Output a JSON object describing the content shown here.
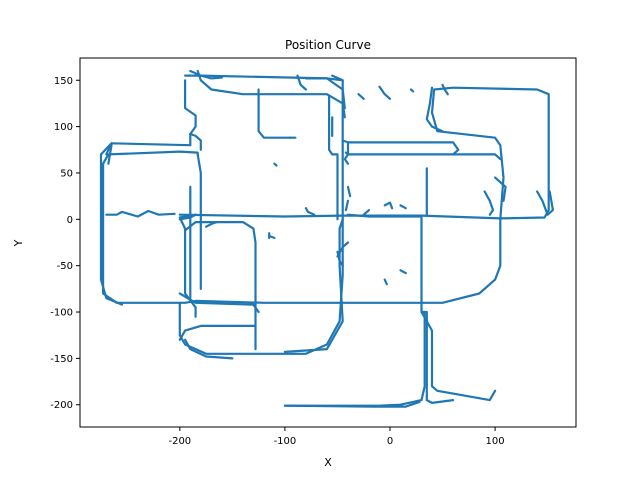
{
  "chart_data": {
    "type": "line",
    "title": "Position Curve",
    "xlabel": "X",
    "ylabel": "Y",
    "xlim": [
      -295,
      177
    ],
    "ylim": [
      -224,
      174
    ],
    "xticks": [
      -200,
      -100,
      0,
      100
    ],
    "yticks": [
      -200,
      -150,
      -100,
      -50,
      0,
      50,
      100,
      150
    ],
    "grid": false,
    "series": [
      {
        "color": "#1f77b4",
        "segments": [
          [
            [
              -200,
              5
            ],
            [
              -100,
              3
            ],
            [
              -45,
              4
            ],
            [
              30,
              4
            ],
            [
              105,
              1
            ],
            [
              147,
              2
            ],
            [
              151,
              10
            ],
            [
              151,
              135
            ],
            [
              140,
              140
            ],
            [
              60,
              142
            ],
            [
              42,
              140
            ],
            [
              40,
              115
            ],
            [
              45,
              95
            ],
            [
              100,
              88
            ],
            [
              105,
              80
            ],
            [
              108,
              45
            ],
            [
              105,
              0
            ],
            [
              105,
              -50
            ],
            [
              100,
              -65
            ],
            [
              85,
              -80
            ],
            [
              50,
              -90
            ],
            [
              -35,
              -90
            ],
            [
              -120,
              -90
            ],
            [
              -185,
              -88
            ],
            [
              -195,
              -90
            ],
            [
              -260,
              -90
            ],
            [
              -273,
              -80
            ],
            [
              -273,
              60
            ],
            [
              -268,
              70
            ],
            [
              -200,
              73
            ],
            [
              -183,
              72
            ],
            [
              -183,
              70
            ]
          ],
          [
            [
              -183,
              70
            ],
            [
              -180,
              50
            ],
            [
              -180,
              -75
            ]
          ],
          [
            [
              -200,
              -90
            ],
            [
              -200,
              -125
            ],
            [
              -195,
              -135
            ],
            [
              -175,
              -145
            ],
            [
              -80,
              -145
            ],
            [
              -60,
              -135
            ],
            [
              -48,
              -110
            ],
            [
              -45,
              -60
            ],
            [
              -45,
              150
            ],
            [
              -55,
              155
            ]
          ],
          [
            [
              -45,
              150
            ],
            [
              -60,
              152
            ],
            [
              -80,
              152
            ]
          ],
          [
            [
              -183,
              160
            ],
            [
              -180,
              150
            ],
            [
              -170,
              140
            ],
            [
              -140,
              135
            ],
            [
              -60,
              135
            ],
            [
              -45,
              125
            ],
            [
              -43,
              110
            ]
          ],
          [
            [
              -195,
              155
            ],
            [
              -180,
              155
            ],
            [
              -60,
              152
            ],
            [
              -45,
              140
            ],
            [
              -43,
              120
            ]
          ],
          [
            [
              -190,
              160
            ],
            [
              -180,
              155
            ],
            [
              -170,
              152
            ],
            [
              -160,
              153
            ]
          ],
          [
            [
              -195,
              150
            ],
            [
              -195,
              120
            ],
            [
              -185,
              112
            ],
            [
              -185,
              100
            ],
            [
              -190,
              92
            ]
          ],
          [
            [
              -190,
              92
            ],
            [
              -190,
              80
            ],
            [
              -265,
              82
            ],
            [
              -270,
              70
            ]
          ],
          [
            [
              -265,
              82
            ],
            [
              -275,
              70
            ],
            [
              -275,
              -65
            ],
            [
              -270,
              -85
            ],
            [
              -255,
              -92
            ]
          ],
          [
            [
              -190,
              92
            ],
            [
              -185,
              90
            ],
            [
              -180,
              85
            ],
            [
              -180,
              75
            ]
          ],
          [
            [
              -265,
              80
            ],
            [
              -268,
              60
            ]
          ],
          [
            [
              -270,
              5
            ],
            [
              -260,
              5
            ],
            [
              -255,
              8
            ],
            [
              -240,
              3
            ],
            [
              -230,
              9
            ],
            [
              -220,
              5
            ],
            [
              -205,
              6
            ]
          ],
          [
            [
              -185,
              5
            ],
            [
              -200,
              2
            ],
            [
              -195,
              -10
            ],
            [
              -195,
              -80
            ],
            [
              -185,
              -95
            ],
            [
              -185,
              -105
            ]
          ],
          [
            [
              -195,
              -12
            ],
            [
              -185,
              -3
            ],
            [
              -140,
              -3
            ],
            [
              -130,
              -10
            ],
            [
              -128,
              -25
            ],
            [
              -128,
              -140
            ]
          ],
          [
            [
              -200,
              -80
            ],
            [
              -185,
              -90
            ],
            [
              -130,
              -92
            ],
            [
              -125,
              -100
            ]
          ],
          [
            [
              -200,
              -130
            ],
            [
              -195,
              -120
            ],
            [
              -180,
              -115
            ],
            [
              -140,
              -115
            ],
            [
              -128,
              -115
            ]
          ],
          [
            [
              -195,
              -130
            ],
            [
              -190,
              -140
            ],
            [
              -175,
              -148
            ],
            [
              -150,
              -150
            ]
          ],
          [
            [
              -125,
              140
            ],
            [
              -125,
              95
            ],
            [
              -120,
              88
            ],
            [
              -95,
              88
            ]
          ],
          [
            [
              -95,
              88
            ],
            [
              -90,
              88
            ]
          ],
          [
            [
              -190,
              35
            ],
            [
              -190,
              -85
            ]
          ],
          [
            [
              -58,
              132
            ],
            [
              -58,
              75
            ],
            [
              -55,
              70
            ],
            [
              -50,
              70
            ],
            [
              -50,
              0
            ]
          ],
          [
            [
              -45,
              85
            ],
            [
              -40,
              83
            ],
            [
              60,
              83
            ],
            [
              65,
              75
            ],
            [
              60,
              70
            ]
          ],
          [
            [
              -40,
              83
            ],
            [
              -40,
              70
            ],
            [
              -43,
              65
            ],
            [
              -40,
              60
            ]
          ],
          [
            [
              -42,
              72
            ],
            [
              -40,
              70
            ],
            [
              60,
              70
            ],
            [
              100,
              70
            ],
            [
              105,
              65
            ]
          ],
          [
            [
              -55,
              110
            ],
            [
              -55,
              90
            ]
          ],
          [
            [
              -45,
              0
            ],
            [
              -48,
              -10
            ],
            [
              -48,
              -50
            ],
            [
              -45,
              -110
            ],
            [
              -60,
              -140
            ],
            [
              -100,
              -143
            ]
          ],
          [
            [
              -40,
              5
            ],
            [
              -20,
              3
            ],
            [
              30,
              3
            ],
            [
              30,
              -100
            ],
            [
              35,
              -100
            ],
            [
              35,
              -195
            ],
            [
              40,
              -198
            ],
            [
              60,
              -195
            ]
          ],
          [
            [
              30,
              -100
            ],
            [
              35,
              -110
            ],
            [
              40,
              -120
            ],
            [
              40,
              -180
            ],
            [
              45,
              -185
            ],
            [
              60,
              -188
            ],
            [
              80,
              -192
            ],
            [
              95,
              -195
            ],
            [
              100,
              -185
            ]
          ],
          [
            [
              -100,
              -201
            ],
            [
              -10,
              -201
            ],
            [
              10,
              -200
            ],
            [
              30,
              -195
            ],
            [
              33,
              -180
            ],
            [
              33,
              -100
            ]
          ],
          [
            [
              -100,
              -201
            ],
            [
              -15,
              -202
            ],
            [
              15,
              -202
            ],
            [
              28,
              -197
            ]
          ],
          [
            [
              -185,
              5
            ],
            [
              -190,
              2
            ],
            [
              -200,
              0
            ]
          ],
          [
            [
              -115,
              -20
            ],
            [
              -115,
              -15
            ]
          ],
          [
            [
              -80,
              12
            ],
            [
              -78,
              8
            ],
            [
              -72,
              5
            ]
          ],
          [
            [
              40,
              142
            ],
            [
              38,
              125
            ],
            [
              35,
              108
            ],
            [
              40,
              100
            ],
            [
              50,
              95
            ]
          ],
          [
            [
              50,
              145
            ],
            [
              52,
              140
            ],
            [
              55,
              135
            ]
          ],
          [
            [
              140,
              30
            ],
            [
              145,
              20
            ],
            [
              150,
              5
            ],
            [
              155,
              10
            ],
            [
              152,
              30
            ]
          ],
          [
            [
              100,
              45
            ],
            [
              105,
              40
            ],
            [
              110,
              35
            ],
            [
              108,
              20
            ]
          ],
          [
            [
              90,
              30
            ],
            [
              95,
              20
            ],
            [
              98,
              10
            ],
            [
              95,
              5
            ]
          ],
          [
            [
              -10,
              143
            ],
            [
              -5,
              135
            ],
            [
              0,
              130
            ]
          ],
          [
            [
              -40,
              -25
            ],
            [
              -45,
              -30
            ],
            [
              -50,
              -40
            ]
          ],
          [
            [
              -50,
              -35
            ],
            [
              -48,
              -45
            ],
            [
              -45,
              -50
            ]
          ],
          [
            [
              -5,
              15
            ],
            [
              0,
              18
            ],
            [
              2,
              12
            ]
          ],
          [
            [
              -25,
              5
            ],
            [
              -20,
              10
            ]
          ],
          [
            [
              -165,
              -3
            ],
            [
              -170,
              -5
            ],
            [
              -175,
              -8
            ]
          ],
          [
            [
              -115,
              -18
            ],
            [
              -110,
              -20
            ]
          ],
          [
            [
              10,
              15
            ],
            [
              15,
              12
            ]
          ],
          [
            [
              -40,
              35
            ],
            [
              -38,
              25
            ]
          ],
          [
            [
              -40,
              20
            ],
            [
              -42,
              10
            ]
          ],
          [
            [
              35,
              55
            ],
            [
              35,
              5
            ]
          ],
          [
            [
              -5,
              -65
            ],
            [
              -3,
              -70
            ]
          ],
          [
            [
              10,
              -55
            ],
            [
              15,
              -58
            ]
          ],
          [
            [
              -110,
              60
            ],
            [
              -108,
              58
            ]
          ],
          [
            [
              20,
              140
            ],
            [
              22,
              138
            ]
          ],
          [
            [
              -30,
              135
            ],
            [
              -25,
              130
            ]
          ],
          [
            [
              -88,
              155
            ],
            [
              -85,
              145
            ],
            [
              -80,
              140
            ]
          ]
        ]
      }
    ]
  }
}
